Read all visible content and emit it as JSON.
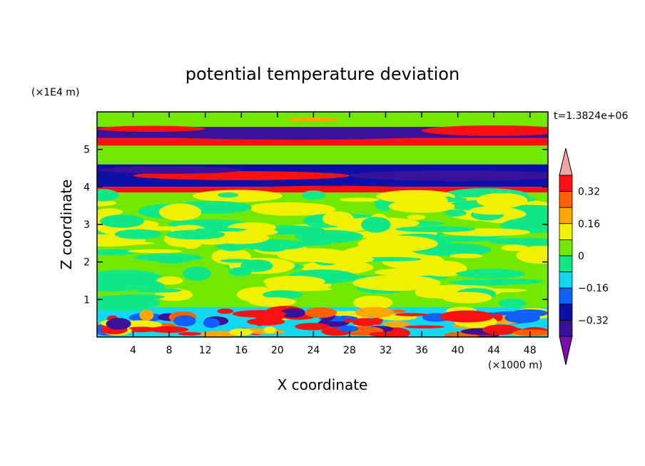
{
  "chart_data": {
    "type": "heatmap",
    "title": "potential temperature deviation",
    "xlabel": "X coordinate",
    "ylabel": "Z coordinate",
    "x_unit": "(×1000 m)",
    "y_unit": "(×1E4 m)",
    "time_label": "t=1.3824e+06",
    "xlim": [
      0,
      50
    ],
    "ylim": [
      0,
      6
    ],
    "x_ticks": [
      4,
      8,
      12,
      16,
      20,
      24,
      28,
      32,
      36,
      40,
      44,
      48
    ],
    "y_ticks": [
      1,
      2,
      3,
      4,
      5
    ],
    "colorbar": {
      "levels": [
        -0.4,
        -0.32,
        -0.24,
        -0.16,
        -0.08,
        0,
        0.08,
        0.16,
        0.24,
        0.32,
        0.4
      ],
      "tick_labels": [
        "0.32",
        "0.16",
        "0",
        "−0.16",
        "−0.32"
      ],
      "tick_values": [
        0.32,
        0.16,
        0,
        -0.16,
        -0.32
      ],
      "colors_low_to_high": [
        "#7a0fb0",
        "#3a129a",
        "#0a10a8",
        "#1060ff",
        "#10d8f0",
        "#10e888",
        "#70e800",
        "#f0f000",
        "#ffa800",
        "#ff6000",
        "#ff1010",
        "#f4a4a4"
      ],
      "extend": "both"
    },
    "bands": [
      {
        "z": [
          5.6,
          6.0
        ],
        "value": 0.0
      },
      {
        "z": [
          5.3,
          5.6
        ],
        "value": -0.36
      },
      {
        "z": [
          5.1,
          5.3
        ],
        "value": 0.38
      },
      {
        "z": [
          4.6,
          5.1
        ],
        "value": 0.02
      },
      {
        "z": [
          4.0,
          4.6
        ],
        "value": -0.3
      },
      {
        "z": [
          3.85,
          4.0
        ],
        "value": 0.38
      },
      {
        "z": [
          0.8,
          3.85
        ],
        "value": 0.03
      },
      {
        "z": [
          0.0,
          0.8
        ],
        "value": -0.1
      }
    ]
  }
}
